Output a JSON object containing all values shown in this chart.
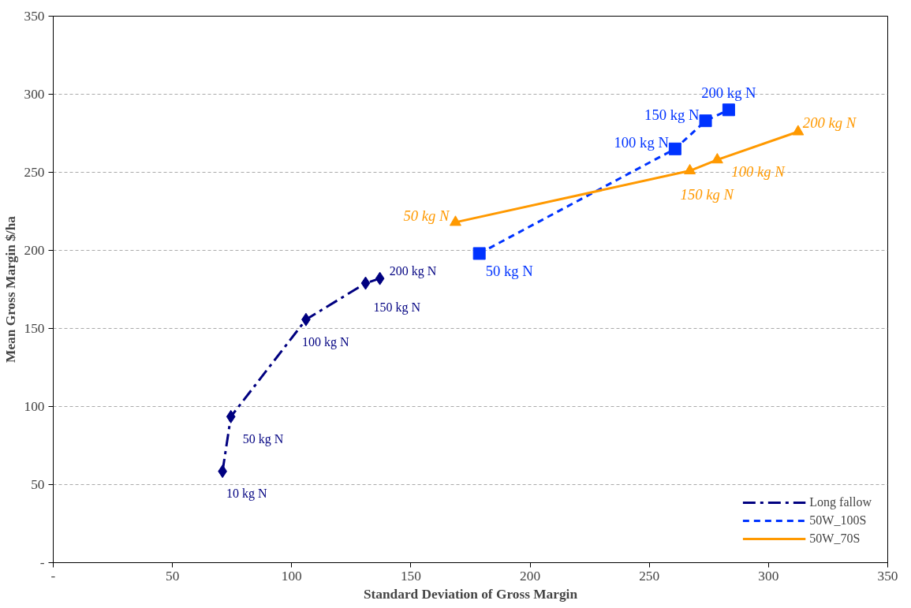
{
  "chart_data": {
    "type": "line",
    "xlabel": "Standard Deviation of Gross Margin",
    "ylabel": "Mean Gross Margin $/ha",
    "xlim": [
      0,
      350
    ],
    "ylim": [
      0,
      350
    ],
    "xticks": [
      {
        "value": 0,
        "label": "-"
      },
      50,
      100,
      150,
      200,
      250,
      300,
      350
    ],
    "yticks": [
      {
        "value": 0,
        "label": "-"
      },
      50,
      100,
      150,
      200,
      250,
      300,
      350
    ],
    "grid": "y",
    "legend": "bottom right",
    "series": [
      {
        "name": "Long fallow",
        "color": "#000080",
        "marker": "diamond",
        "line_style": "dashed",
        "x": [
          71,
          74.5,
          106,
          131,
          137
        ],
        "values": [
          58.5,
          93.5,
          155.7,
          179,
          182
        ]
      },
      {
        "name": "50W_100S",
        "color": "#0033ff",
        "marker": "square",
        "line_style": "dotted",
        "x": [
          178.7,
          260.8,
          273.6,
          283.3
        ],
        "values": [
          198,
          265,
          283,
          290
        ]
      },
      {
        "name": "50W_70S",
        "color": "#ff9900",
        "marker": "triangle",
        "line_style": "solid",
        "x": [
          168.7,
          267,
          278.5,
          312.4
        ],
        "values": [
          218,
          251,
          258,
          276
        ]
      }
    ],
    "annotations": [
      {
        "text": "10 kg N",
        "x": 71,
        "y": 58.5
      },
      {
        "text": "50 kg N",
        "x": 74.5,
        "y": 93.5
      },
      {
        "text": "100 kg N",
        "x": 106,
        "y": 155.7
      },
      {
        "text": "150 kg N",
        "x": 131,
        "y": 179
      },
      {
        "text": "200 kg N",
        "x": 137,
        "y": 182
      },
      {
        "text": "50 kg N",
        "x": 178.7,
        "y": 198
      },
      {
        "text": "100 kg N",
        "x": 260.8,
        "y": 265
      },
      {
        "text": "150 kg N",
        "x": 273.6,
        "y": 283
      },
      {
        "text": "200 kg N",
        "x": 283.3,
        "y": 290
      },
      {
        "text": "50 kg N",
        "x": 168.7,
        "y": 218
      },
      {
        "text": "150 kg N",
        "x": 267,
        "y": 251
      },
      {
        "text": "100 kg N",
        "x": 278.5,
        "y": 258
      },
      {
        "text": "200 kg N",
        "x": 312.4,
        "y": 276
      }
    ]
  }
}
